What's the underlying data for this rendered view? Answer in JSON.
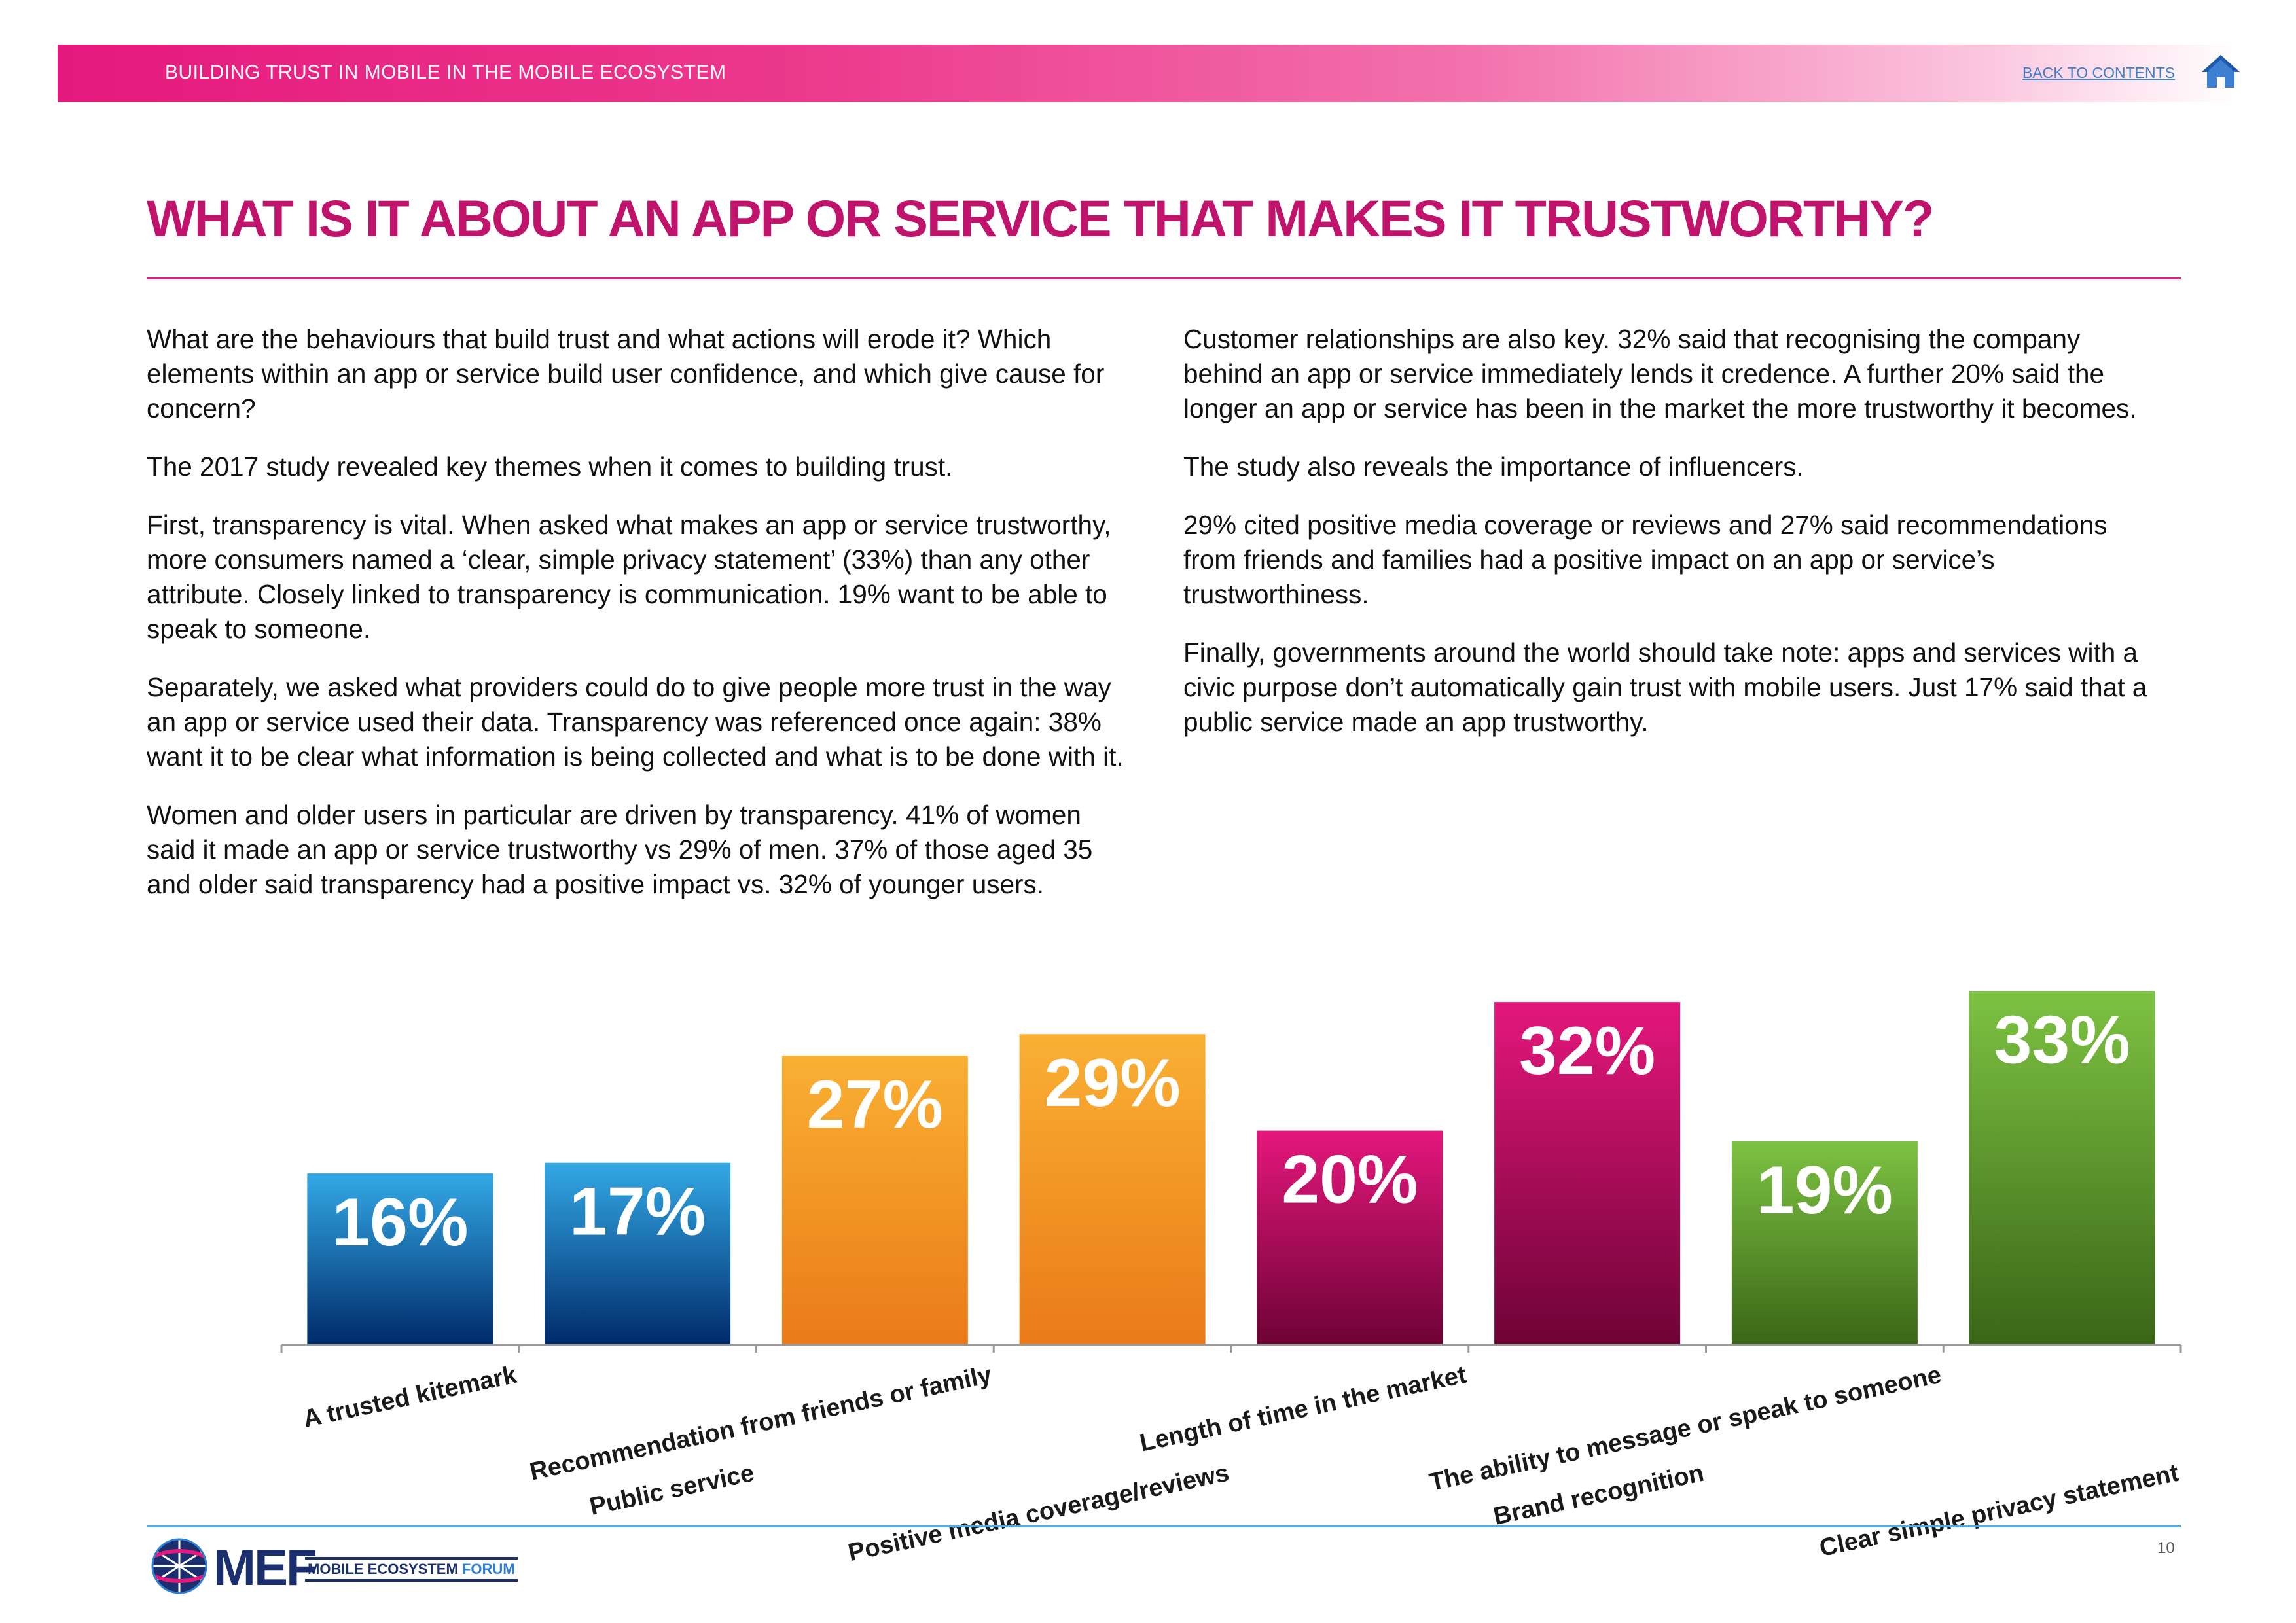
{
  "header": {
    "title": "BUILDING TRUST IN MOBILE IN THE MOBILE ECOSYSTEM",
    "back_link": "BACK TO CONTENTS",
    "home_icon": "home-icon",
    "gradient_colors": [
      "#e5197d",
      "#f372ad",
      "#ffffff"
    ]
  },
  "page_title": "WHAT IS IT ABOUT AN APP OR SERVICE THAT MAKES IT TRUSTWORTHY?",
  "body_left": [
    "What are the behaviours that build trust and what actions will erode it? Which elements within an app or service build user confidence, and which give cause for concern?",
    "The 2017 study revealed key themes when it comes to building trust.",
    "First, transparency is vital. When asked what makes an app or service trustworthy, more consumers named a ‘clear, simple privacy statement’ (33%) than any other attribute. Closely linked to transparency is communication. 19% want to be able to speak to someone.",
    "Separately, we asked what providers could do to give people more trust in the way an app or service used their data. Transparency was referenced once again: 38% want it to be clear what information is being collected and what is to be done with it.",
    "Women and older users in particular are driven by transparency. 41% of women said it made an app or service trustworthy vs 29% of men. 37% of those aged 35 and older said transparency had a positive impact vs. 32% of younger users."
  ],
  "body_right": [
    "Customer relationships are also key. 32% said that recognising the company behind an app or service immediately lends it credence. A further 20% said the longer an app or service has been in the market the more trustworthy it becomes.",
    "The study also reveals the importance of influencers.",
    "29% cited positive media coverage or reviews and 27% said recommendations from friends and families had a positive impact on an app or service’s trustworthiness.",
    "Finally, governments around the world should take note: apps and services with a civic purpose don’t automatically gain trust with mobile users. Just 17% said that a public service made an app trustworthy."
  ],
  "chart_data": {
    "type": "bar",
    "title": "",
    "xlabel": "",
    "ylabel": "",
    "ylim": [
      0,
      35
    ],
    "grid": false,
    "legend": "none",
    "categories": [
      "A trusted kitemark",
      "Public service",
      "Recommendation from friends or family",
      "Positive media coverage/reviews",
      "Length of time in the market",
      "Brand recognition",
      "The ability to message or speak to someone",
      "Clear simple privacy statement"
    ],
    "values": [
      16,
      17,
      27,
      29,
      20,
      32,
      19,
      33
    ],
    "data_labels": [
      "16%",
      "17%",
      "27%",
      "29%",
      "20%",
      "32%",
      "19%",
      "33%"
    ],
    "colors": [
      [
        "#33a9e6",
        "#002a6a"
      ],
      [
        "#33a9e6",
        "#002a6a"
      ],
      [
        "#f9b033",
        "#ea7a18"
      ],
      [
        "#f9b033",
        "#ea7a18"
      ],
      [
        "#e4177c",
        "#6d0335"
      ],
      [
        "#e4177c",
        "#6d0335"
      ],
      [
        "#7dc242",
        "#3a6617"
      ],
      [
        "#7dc242",
        "#3a6617"
      ]
    ]
  },
  "footer": {
    "logo_text": "MEF",
    "logo_sub_main": "MOBILE ECOSYSTEM",
    "logo_sub_forum": "FORUM",
    "page_number": "10",
    "logo_icon": "globe-icon"
  }
}
